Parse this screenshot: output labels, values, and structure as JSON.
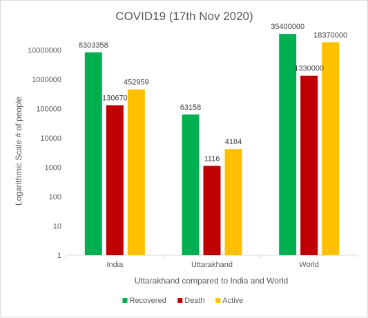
{
  "chart_data": {
    "type": "bar",
    "title": "COVID19 (17th Nov 2020)",
    "xlabel": "Uttarakhand compared to  India and World",
    "ylabel": "Logarithmic Scale # of people",
    "y_scale": "log",
    "ylim": [
      1,
      100000000
    ],
    "y_ticks": [
      1,
      10,
      100,
      1000,
      10000,
      100000,
      1000000,
      10000000
    ],
    "y_tick_labels": [
      "1",
      "10",
      "100",
      "1000",
      "10000",
      "100000",
      "1000000",
      "10000000"
    ],
    "categories": [
      "India",
      "Uttarakhand",
      "World"
    ],
    "series": [
      {
        "name": "Recovered",
        "color": "#00b050",
        "values": [
          8303358,
          63158,
          35400000
        ],
        "labels": [
          "8303358",
          "63158",
          "35400000"
        ]
      },
      {
        "name": "Death",
        "color": "#c00000",
        "values": [
          130670,
          1116,
          1330000
        ],
        "labels": [
          "130670",
          "1116",
          "1330000"
        ]
      },
      {
        "name": "Active",
        "color": "#ffc000",
        "values": [
          452959,
          4184,
          18370000
        ],
        "labels": [
          "452959",
          "4184",
          "18370000"
        ]
      }
    ],
    "grid": false,
    "legend_position": "bottom"
  }
}
